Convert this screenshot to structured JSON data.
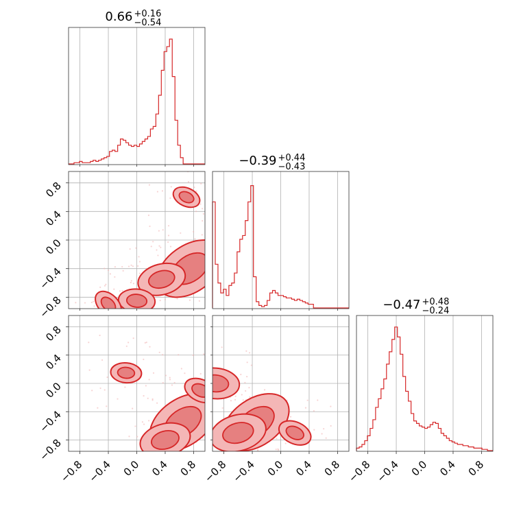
{
  "figure": {
    "type": "corner",
    "accent_color": "#d62728",
    "grid": true
  },
  "titles": [
    {
      "value": "0.66",
      "plus": "+0.16",
      "minus": "−0.54"
    },
    {
      "value": "−0.39",
      "plus": "+0.44",
      "minus": "−0.43"
    },
    {
      "value": "−0.47",
      "plus": "+0.48",
      "minus": "−0.24"
    }
  ],
  "axes": {
    "range": [
      -0.96,
      0.96
    ],
    "ticks": [
      -0.8,
      -0.4,
      0.0,
      0.4,
      0.8
    ],
    "tick_labels": [
      "−0.8",
      "−0.4",
      "0.0",
      "0.4",
      "0.8"
    ]
  },
  "chart_data": [
    {
      "type": "histogram",
      "panel": "diag-1",
      "x_range": [
        -0.96,
        0.96
      ],
      "bin_width": 0.0384,
      "counts": [
        0,
        0,
        0.01,
        0.01,
        0.02,
        0.01,
        0.01,
        0.01,
        0.02,
        0.03,
        0.02,
        0.03,
        0.04,
        0.05,
        0.06,
        0.1,
        0.11,
        0.1,
        0.15,
        0.2,
        0.19,
        0.17,
        0.15,
        0.14,
        0.15,
        0.14,
        0.16,
        0.18,
        0.2,
        0.22,
        0.28,
        0.3,
        0.4,
        0.55,
        0.75,
        0.9,
        0.94,
        1.0,
        0.7,
        0.35,
        0.15,
        0.05,
        0.0,
        0.0,
        0.0,
        0.0,
        0.0,
        0.0,
        0.0,
        0.0
      ]
    },
    {
      "type": "histogram",
      "panel": "diag-2",
      "x_range": [
        -0.96,
        0.96
      ],
      "bin_width": 0.0384,
      "counts": [
        0.85,
        0.35,
        0.2,
        0.12,
        0.15,
        0.1,
        0.18,
        0.2,
        0.28,
        0.45,
        0.55,
        0.58,
        0.7,
        0.85,
        0.98,
        0.25,
        0.05,
        0.02,
        0.01,
        0.02,
        0.06,
        0.12,
        0.14,
        0.12,
        0.1,
        0.1,
        0.09,
        0.08,
        0.08,
        0.07,
        0.06,
        0.07,
        0.06,
        0.05,
        0.04,
        0.03,
        0.03,
        0.0,
        0.0,
        0.0,
        0.0,
        0.0,
        0.0,
        0.0,
        0.0,
        0.0,
        0.0,
        0.0,
        0.0,
        0.0
      ]
    },
    {
      "type": "histogram",
      "panel": "diag-3",
      "x_range": [
        -0.96,
        0.96
      ],
      "bin_width": 0.0384,
      "counts": [
        0.02,
        0.03,
        0.05,
        0.08,
        0.12,
        0.18,
        0.25,
        0.35,
        0.42,
        0.5,
        0.58,
        0.7,
        0.8,
        0.9,
        1.0,
        0.92,
        0.78,
        0.6,
        0.48,
        0.4,
        0.3,
        0.24,
        0.22,
        0.2,
        0.19,
        0.18,
        0.19,
        0.21,
        0.23,
        0.22,
        0.18,
        0.14,
        0.12,
        0.1,
        0.08,
        0.07,
        0.06,
        0.05,
        0.05,
        0.04,
        0.04,
        0.03,
        0.03,
        0.02,
        0.02,
        0.02,
        0.01,
        0.01,
        0.0,
        0.0
      ]
    },
    {
      "type": "contour",
      "panel": "pair-2-1",
      "x_range": [
        -0.96,
        0.96
      ],
      "y_range": [
        -0.96,
        0.96
      ],
      "density_peaks": [
        {
          "x": 0.75,
          "y": -0.4,
          "weight": 1.0
        },
        {
          "x": 0.35,
          "y": -0.55,
          "weight": 0.55
        },
        {
          "x": 0.0,
          "y": -0.85,
          "weight": 0.35
        },
        {
          "x": 0.7,
          "y": 0.6,
          "weight": 0.2
        },
        {
          "x": -0.4,
          "y": -0.9,
          "weight": 0.25
        }
      ]
    },
    {
      "type": "contour",
      "panel": "pair-3-1",
      "x_range": [
        -0.96,
        0.96
      ],
      "y_range": [
        -0.96,
        0.96
      ],
      "density_peaks": [
        {
          "x": 0.65,
          "y": -0.55,
          "weight": 1.0
        },
        {
          "x": 0.4,
          "y": -0.8,
          "weight": 0.6
        },
        {
          "x": -0.15,
          "y": 0.15,
          "weight": 0.25
        },
        {
          "x": 0.9,
          "y": -0.1,
          "weight": 0.3
        }
      ]
    },
    {
      "type": "contour",
      "panel": "pair-3-2",
      "x_range": [
        -0.96,
        0.96
      ],
      "y_range": [
        -0.96,
        0.96
      ],
      "density_peaks": [
        {
          "x": -0.35,
          "y": -0.55,
          "weight": 1.0
        },
        {
          "x": -0.6,
          "y": -0.7,
          "weight": 0.7
        },
        {
          "x": -0.92,
          "y": 0.0,
          "weight": 0.55
        },
        {
          "x": 0.2,
          "y": -0.7,
          "weight": 0.3
        }
      ]
    }
  ]
}
